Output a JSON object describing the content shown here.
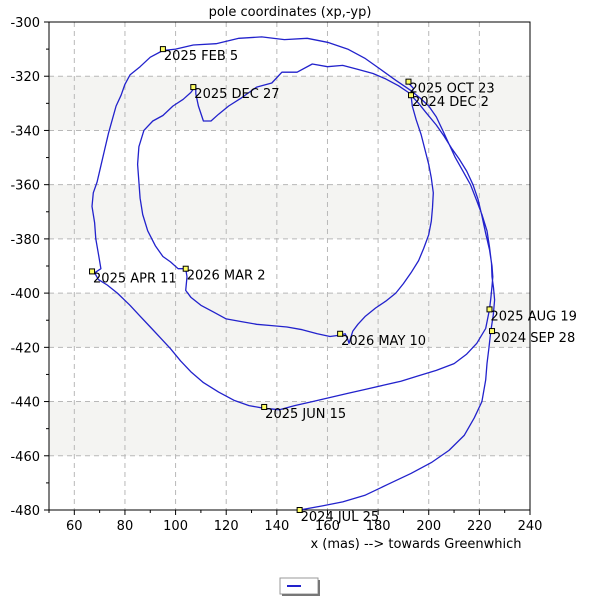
{
  "chart_data": {
    "type": "line",
    "title": "pole coordinates (xp,-yp)",
    "xlabel": "x (mas) --> towards Greenwhich",
    "ylabel": "",
    "xlim": [
      50,
      240
    ],
    "ylim": [
      -480,
      -300
    ],
    "x_ticks": [
      60,
      80,
      100,
      120,
      140,
      160,
      180,
      200,
      220,
      240
    ],
    "y_ticks": [
      -300,
      -320,
      -340,
      -360,
      -380,
      -400,
      -420,
      -440,
      -460,
      -480
    ],
    "grid": true,
    "band_color": "#f4f4f2",
    "series": [
      {
        "name": "",
        "color": "#2222cc",
        "points": [
          [
            149,
            -480
          ],
          [
            158,
            -478.5
          ],
          [
            166,
            -477
          ],
          [
            175,
            -474.5
          ],
          [
            184,
            -470.5
          ],
          [
            193,
            -466.5
          ],
          [
            201,
            -462.5
          ],
          [
            208,
            -458
          ],
          [
            214,
            -452.5
          ],
          [
            218,
            -446
          ],
          [
            221,
            -440
          ],
          [
            222.5,
            -432
          ],
          [
            223,
            -426
          ],
          [
            223.8,
            -420
          ],
          [
            224.5,
            -414
          ],
          [
            225.5,
            -408
          ],
          [
            226,
            -402.5
          ],
          [
            225.6,
            -398
          ],
          [
            225,
            -394
          ],
          [
            224.8,
            -389
          ],
          [
            224,
            -383
          ],
          [
            223,
            -377
          ],
          [
            221,
            -371
          ],
          [
            219,
            -366
          ],
          [
            216.5,
            -360
          ],
          [
            213.5,
            -355
          ],
          [
            210.5,
            -350
          ],
          [
            208,
            -345
          ],
          [
            205.5,
            -340
          ],
          [
            203,
            -335
          ],
          [
            200,
            -331
          ],
          [
            196.5,
            -328
          ],
          [
            192.5,
            -325
          ],
          [
            187,
            -321.5
          ],
          [
            181,
            -317.5
          ],
          [
            175,
            -313.5
          ],
          [
            168,
            -310
          ],
          [
            160,
            -307.5
          ],
          [
            152,
            -306
          ],
          [
            143,
            -306.5
          ],
          [
            134,
            -305.5
          ],
          [
            125,
            -306
          ],
          [
            116,
            -308
          ],
          [
            107,
            -308.5
          ],
          [
            100,
            -310
          ],
          [
            95,
            -310.5
          ],
          [
            90,
            -313
          ],
          [
            86,
            -316.5
          ],
          [
            82,
            -319.5
          ],
          [
            80,
            -323
          ],
          [
            78.5,
            -327
          ],
          [
            76.5,
            -331
          ],
          [
            75,
            -336
          ],
          [
            73.5,
            -341
          ],
          [
            72,
            -347
          ],
          [
            70.5,
            -353
          ],
          [
            69,
            -359
          ],
          [
            67.5,
            -363
          ],
          [
            67,
            -368
          ],
          [
            68,
            -374
          ],
          [
            68.5,
            -380
          ],
          [
            69.5,
            -385.5
          ],
          [
            70.5,
            -391
          ],
          [
            68,
            -392.5
          ],
          [
            69.5,
            -395
          ],
          [
            73,
            -397
          ],
          [
            77,
            -400
          ],
          [
            82,
            -404.5
          ],
          [
            86,
            -408.5
          ],
          [
            90,
            -412.5
          ],
          [
            94,
            -416.5
          ],
          [
            98,
            -420.5
          ],
          [
            102,
            -425
          ],
          [
            106,
            -429
          ],
          [
            111,
            -433
          ],
          [
            117,
            -436.5
          ],
          [
            123,
            -439.5
          ],
          [
            129,
            -441.5
          ],
          [
            135,
            -442.5
          ],
          [
            141,
            -443
          ],
          [
            147,
            -441.5
          ],
          [
            154,
            -440
          ],
          [
            161,
            -438.5
          ],
          [
            168,
            -437
          ],
          [
            175,
            -435.5
          ],
          [
            182,
            -434
          ],
          [
            189,
            -432.5
          ],
          [
            196,
            -430.5
          ],
          [
            203,
            -428.5
          ],
          [
            210,
            -426
          ],
          [
            215,
            -422.5
          ],
          [
            219,
            -418.5
          ],
          [
            222.5,
            -413
          ],
          [
            224,
            -406
          ],
          [
            224.5,
            -402
          ],
          [
            225,
            -397.5
          ],
          [
            225.3,
            -394
          ],
          [
            225,
            -390
          ],
          [
            224,
            -384
          ],
          [
            222.5,
            -378
          ],
          [
            221,
            -371.5
          ],
          [
            219.5,
            -365.5
          ],
          [
            217.5,
            -360
          ],
          [
            215,
            -355
          ],
          [
            212,
            -350.5
          ],
          [
            209,
            -346.5
          ],
          [
            206,
            -342
          ],
          [
            203,
            -338
          ],
          [
            199,
            -333.5
          ],
          [
            196,
            -330
          ],
          [
            192,
            -326
          ],
          [
            188,
            -323.5
          ],
          [
            183,
            -321
          ],
          [
            178,
            -319
          ],
          [
            172,
            -317.5
          ],
          [
            166,
            -316
          ],
          [
            160,
            -316.5
          ],
          [
            154,
            -315.5
          ],
          [
            148,
            -318.5
          ],
          [
            142,
            -318.5
          ],
          [
            138,
            -322.5
          ],
          [
            132,
            -324
          ],
          [
            126,
            -328
          ],
          [
            121,
            -331
          ],
          [
            117,
            -334
          ],
          [
            114,
            -336.5
          ],
          [
            111,
            -336.5
          ],
          [
            109,
            -331
          ],
          [
            108,
            -326.5
          ],
          [
            108,
            -323.5
          ],
          [
            106,
            -326
          ],
          [
            103,
            -328.5
          ],
          [
            99,
            -331
          ],
          [
            95,
            -334.5
          ],
          [
            91,
            -336.5
          ],
          [
            87.5,
            -340
          ],
          [
            85.5,
            -346
          ],
          [
            85,
            -352.5
          ],
          [
            85.5,
            -359
          ],
          [
            86,
            -365
          ],
          [
            87,
            -371
          ],
          [
            89,
            -377
          ],
          [
            92,
            -382.5
          ],
          [
            95,
            -386.5
          ],
          [
            98,
            -388.5
          ],
          [
            101,
            -391
          ],
          [
            104,
            -391
          ],
          [
            104.5,
            -394
          ],
          [
            104,
            -399
          ],
          [
            106,
            -401.5
          ],
          [
            110,
            -404.5
          ],
          [
            115,
            -407
          ],
          [
            120,
            -409.5
          ],
          [
            126,
            -410.5
          ],
          [
            132,
            -411.5
          ],
          [
            138,
            -412
          ],
          [
            144,
            -412.5
          ],
          [
            150,
            -413.5
          ],
          [
            156,
            -415
          ],
          [
            161,
            -416
          ],
          [
            165,
            -415.5
          ],
          [
            167,
            -415
          ],
          [
            168,
            -417
          ],
          [
            168.5,
            -418.5
          ],
          [
            170,
            -414
          ],
          [
            172,
            -411.5
          ],
          [
            175,
            -408.5
          ],
          [
            179,
            -405.5
          ],
          [
            183,
            -403
          ],
          [
            187,
            -400
          ],
          [
            190,
            -396.5
          ],
          [
            193,
            -392.5
          ],
          [
            196,
            -388
          ],
          [
            198,
            -383.5
          ],
          [
            200,
            -378.5
          ],
          [
            201,
            -373.5
          ],
          [
            201.5,
            -368.5
          ],
          [
            201.8,
            -363
          ],
          [
            201,
            -357.5
          ],
          [
            200,
            -352.5
          ],
          [
            198.5,
            -347
          ],
          [
            197,
            -341.5
          ],
          [
            195,
            -336
          ],
          [
            193.5,
            -331
          ],
          [
            193,
            -327
          ],
          [
            194,
            -324.5
          ],
          [
            192,
            -322.5
          ]
        ]
      }
    ],
    "annotations": [
      {
        "text": "2024 JUL 25",
        "x": 149,
        "y": -480
      },
      {
        "text": "2024 SEP 28",
        "x": 225,
        "y": -414
      },
      {
        "text": "2024 DEC 2",
        "x": 193,
        "y": -327
      },
      {
        "text": "2025 FEB 5",
        "x": 95,
        "y": -310
      },
      {
        "text": "2025 APR 11",
        "x": 67,
        "y": -392
      },
      {
        "text": "2025 JUN 15",
        "x": 135,
        "y": -442
      },
      {
        "text": "2025 AUG 19",
        "x": 224,
        "y": -406
      },
      {
        "text": "2025 OCT 23",
        "x": 192,
        "y": -322
      },
      {
        "text": "2025 DEC 27",
        "x": 107,
        "y": -324
      },
      {
        "text": "2026 MAR 2",
        "x": 104,
        "y": -391
      },
      {
        "text": "2026 MAY 10",
        "x": 165,
        "y": -415
      }
    ]
  }
}
